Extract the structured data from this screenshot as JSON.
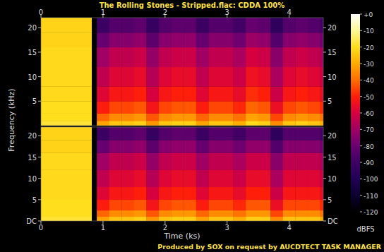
{
  "chart_data": {
    "type": "spectrogram",
    "title": "The Rolling Stones - Stripped.flac: CDDA 100%",
    "x_label": "Time (ks)",
    "y_label": "Frequency (kHz)",
    "footer": "Produced by SOX on request by AUCDTECT TASK MANAGER",
    "xlim": [
      0,
      4.55
    ],
    "xticks": [
      0,
      1,
      2,
      3,
      4
    ],
    "ylim": [
      0,
      22.05
    ],
    "yticks": [
      {
        "value": 0,
        "label": "DC"
      },
      5,
      10,
      15,
      20
    ],
    "time_edges": [
      0,
      0.82,
      0.9,
      1.1,
      1.3,
      1.5,
      1.7,
      1.9,
      2.1,
      2.3,
      2.5,
      2.7,
      2.9,
      3.1,
      3.3,
      3.5,
      3.7,
      3.9,
      4.1,
      4.3,
      4.5,
      4.55
    ],
    "freq_edges": [
      0,
      1,
      2.5,
      5,
      8,
      12,
      16,
      19,
      22.05
    ],
    "channels": [
      {
        "cells": [
          [
            -18,
            -20,
            -20,
            -21,
            -21,
            -21,
            -22,
            -22
          ],
          [
            -120,
            -120,
            -120,
            -120,
            -120,
            -120,
            -120,
            -120
          ],
          [
            -31,
            -41,
            -51,
            -58,
            -64,
            -70,
            -81,
            -91
          ],
          [
            -25,
            -35,
            -45,
            -52,
            -58,
            -64,
            -75,
            -85
          ],
          [
            -25,
            -35,
            -45,
            -52,
            -58,
            -64,
            -75,
            -85
          ],
          [
            -23,
            -33,
            -43,
            -50,
            -56,
            -62,
            -73,
            -83
          ],
          [
            -33,
            -43,
            -53,
            -60,
            -66,
            -72,
            -83,
            -93
          ],
          [
            -25,
            -35,
            -45,
            -52,
            -58,
            -64,
            -75,
            -85
          ],
          [
            -23,
            -33,
            -43,
            -50,
            -56,
            -62,
            -73,
            -83
          ],
          [
            -23,
            -33,
            -43,
            -50,
            -56,
            -62,
            -73,
            -83
          ],
          [
            -31,
            -41,
            -51,
            -58,
            -64,
            -70,
            -81,
            -91
          ],
          [
            -25,
            -35,
            -45,
            -52,
            -58,
            -64,
            -75,
            -85
          ],
          [
            -25,
            -35,
            -45,
            -52,
            -58,
            -64,
            -75,
            -85
          ],
          [
            -29,
            -39,
            -49,
            -56,
            -62,
            -68,
            -79,
            -89
          ],
          [
            -21,
            -31,
            -41,
            -48,
            -54,
            -60,
            -71,
            -81
          ],
          [
            -23,
            -33,
            -43,
            -50,
            -56,
            -62,
            -73,
            -83
          ],
          [
            -35,
            -45,
            -55,
            -62,
            -68,
            -74,
            -85,
            -95
          ],
          [
            -25,
            -35,
            -45,
            -52,
            -58,
            -64,
            -75,
            -85
          ],
          [
            -23,
            -33,
            -43,
            -50,
            -56,
            -62,
            -73,
            -83
          ],
          [
            -25,
            -35,
            -45,
            -52,
            -58,
            -64,
            -75,
            -85
          ],
          [
            -29,
            -39,
            -49,
            -56,
            -62,
            -68,
            -79,
            -89
          ]
        ]
      },
      {
        "cells": [
          [
            -18,
            -20,
            -20,
            -21,
            -21,
            -21,
            -22,
            -22
          ],
          [
            -120,
            -120,
            -120,
            -120,
            -120,
            -120,
            -120,
            -120
          ],
          [
            -31,
            -41,
            -51,
            -58,
            -64,
            -70,
            -81,
            -91
          ],
          [
            -25,
            -35,
            -45,
            -52,
            -58,
            -64,
            -75,
            -85
          ],
          [
            -25,
            -35,
            -45,
            -52,
            -58,
            -64,
            -75,
            -85
          ],
          [
            -23,
            -33,
            -43,
            -50,
            -56,
            -62,
            -73,
            -83
          ],
          [
            -33,
            -43,
            -53,
            -60,
            -66,
            -72,
            -83,
            -93
          ],
          [
            -25,
            -35,
            -45,
            -52,
            -58,
            -64,
            -75,
            -85
          ],
          [
            -23,
            -33,
            -43,
            -50,
            -56,
            -62,
            -73,
            -83
          ],
          [
            -23,
            -33,
            -43,
            -50,
            -56,
            -62,
            -73,
            -83
          ],
          [
            -31,
            -41,
            -51,
            -58,
            -64,
            -70,
            -81,
            -91
          ],
          [
            -25,
            -35,
            -45,
            -52,
            -58,
            -64,
            -75,
            -85
          ],
          [
            -25,
            -35,
            -45,
            -52,
            -58,
            -64,
            -75,
            -85
          ],
          [
            -29,
            -39,
            -49,
            -56,
            -62,
            -68,
            -79,
            -89
          ],
          [
            -23,
            -33,
            -43,
            -50,
            -56,
            -62,
            -73,
            -83
          ],
          [
            -23,
            -33,
            -43,
            -50,
            -56,
            -62,
            -73,
            -83
          ],
          [
            -35,
            -45,
            -55,
            -62,
            -68,
            -74,
            -85,
            -95
          ],
          [
            -25,
            -35,
            -45,
            -52,
            -58,
            -64,
            -75,
            -85
          ],
          [
            -25,
            -35,
            -45,
            -52,
            -58,
            -64,
            -75,
            -85
          ],
          [
            -25,
            -35,
            -45,
            -52,
            -58,
            -64,
            -75,
            -85
          ],
          [
            -29,
            -39,
            -49,
            -56,
            -62,
            -68,
            -79,
            -89
          ]
        ]
      }
    ],
    "color_bar": {
      "range": [
        -120,
        0
      ],
      "ticks": [
        {
          "value": 0,
          "label": "+0"
        },
        -10,
        -20,
        -30,
        -40,
        -50,
        -60,
        -70,
        -80,
        -90,
        -100,
        -110,
        -120
      ],
      "label": "dBFS"
    }
  }
}
